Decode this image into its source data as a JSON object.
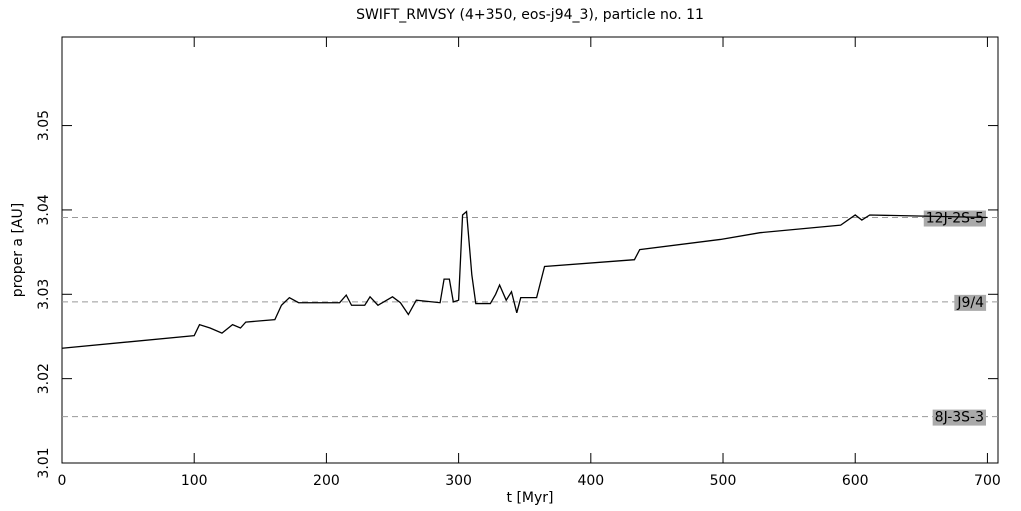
{
  "chart_data": {
    "type": "line",
    "title": "SWIFT_RMVSY (4+350, eos-j94_3), particle no. 11",
    "x_label": "t [Myr]",
    "y_label": "proper a [AU]",
    "x": [
      0,
      100,
      104,
      112,
      121,
      129,
      135,
      139,
      161,
      166,
      172,
      179,
      210,
      215,
      219,
      229,
      233,
      239,
      250,
      256,
      262,
      268,
      286,
      289,
      293,
      296,
      300,
      303,
      306,
      310,
      313,
      324,
      328,
      331,
      336,
      340,
      344,
      347,
      359,
      365,
      433,
      437,
      498,
      528,
      589,
      600,
      605,
      611,
      700
    ],
    "series": [
      {
        "name": "proper a",
        "color": "#000000",
        "values": [
          3.0236,
          3.0251,
          3.0264,
          3.026,
          3.0254,
          3.0264,
          3.026,
          3.0267,
          3.027,
          3.0287,
          3.0296,
          3.029,
          3.029,
          3.0299,
          3.0287,
          3.0287,
          3.0297,
          3.0287,
          3.0297,
          3.029,
          3.0276,
          3.0293,
          3.029,
          3.0318,
          3.0318,
          3.0291,
          3.0293,
          3.0394,
          3.0398,
          3.0323,
          3.0289,
          3.0289,
          3.03,
          3.0311,
          3.0293,
          3.0303,
          3.0278,
          3.0296,
          3.0296,
          3.0333,
          3.0341,
          3.0353,
          3.0365,
          3.0373,
          3.0382,
          3.0394,
          3.0388,
          3.0394,
          3.0391
        ]
      }
    ],
    "xlim": [
      0,
      708
    ],
    "ylim": [
      3.01,
      3.0605
    ],
    "xticks": [
      0,
      100,
      200,
      300,
      400,
      500,
      600,
      700
    ],
    "yticks": [
      3.01,
      3.02,
      3.03,
      3.04,
      3.05
    ],
    "resonances": [
      {
        "label": "12J-2S-5",
        "value": 3.0391
      },
      {
        "label": "J9/4",
        "value": 3.0291
      },
      {
        "label": "8J-3S-3",
        "value": 3.0155
      }
    ]
  }
}
